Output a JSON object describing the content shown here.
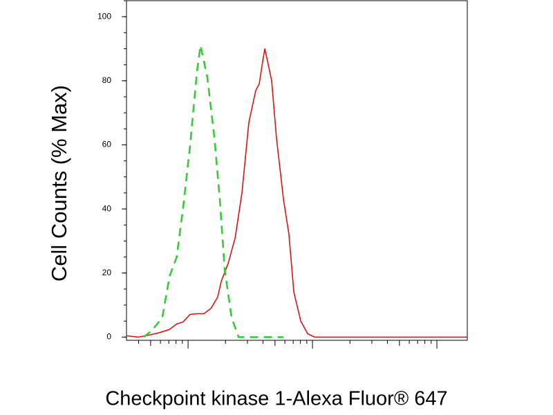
{
  "chart_data": {
    "type": "line",
    "xlabel": "Checkpoint kinase 1-Alexa Fluor® 647",
    "ylabel": "Cell Counts (% Max)",
    "xscale": "log",
    "xlim": [
      3.2,
      1755
    ],
    "xticks": [
      10,
      100,
      1000
    ],
    "ylim": [
      -1,
      105
    ],
    "yticks": [
      0,
      20,
      40,
      60,
      80,
      100
    ],
    "series": [
      {
        "color": "#e01010",
        "style": "solid",
        "x": [
          3.2,
          4.0,
          4.8,
          5.8,
          7.1,
          8.1,
          9.1,
          10.4,
          11.8,
          13.4,
          15.3,
          17.3,
          18.5,
          21.0,
          23.9,
          27.1,
          30.8,
          35.0,
          37.3,
          39.8,
          41.4,
          44.1,
          47.0,
          51.4,
          58.5,
          64.7,
          70.8,
          80.5,
          91.5,
          104,
          185,
          1755
        ],
        "values": [
          0.4,
          0,
          0.6,
          1.3,
          2.4,
          4.1,
          4.7,
          7.1,
          7.3,
          7.3,
          9,
          12.5,
          17.5,
          23,
          31,
          45,
          67,
          77,
          79,
          86,
          90,
          85,
          80,
          62,
          43,
          32,
          14,
          5,
          1,
          0,
          0,
          0
        ]
      },
      {
        "color": "#33cc33",
        "style": "dashed",
        "x": [
          4.4,
          5.1,
          6.2,
          7.1,
          8.1,
          9.1,
          10.4,
          11.8,
          12.6,
          14.3,
          16.3,
          18.0,
          19.7,
          22.4,
          25.5,
          58.5
        ],
        "values": [
          0,
          2,
          6,
          19,
          25,
          40,
          60,
          83,
          91,
          81,
          62,
          43,
          21,
          6,
          0,
          0
        ]
      }
    ]
  }
}
